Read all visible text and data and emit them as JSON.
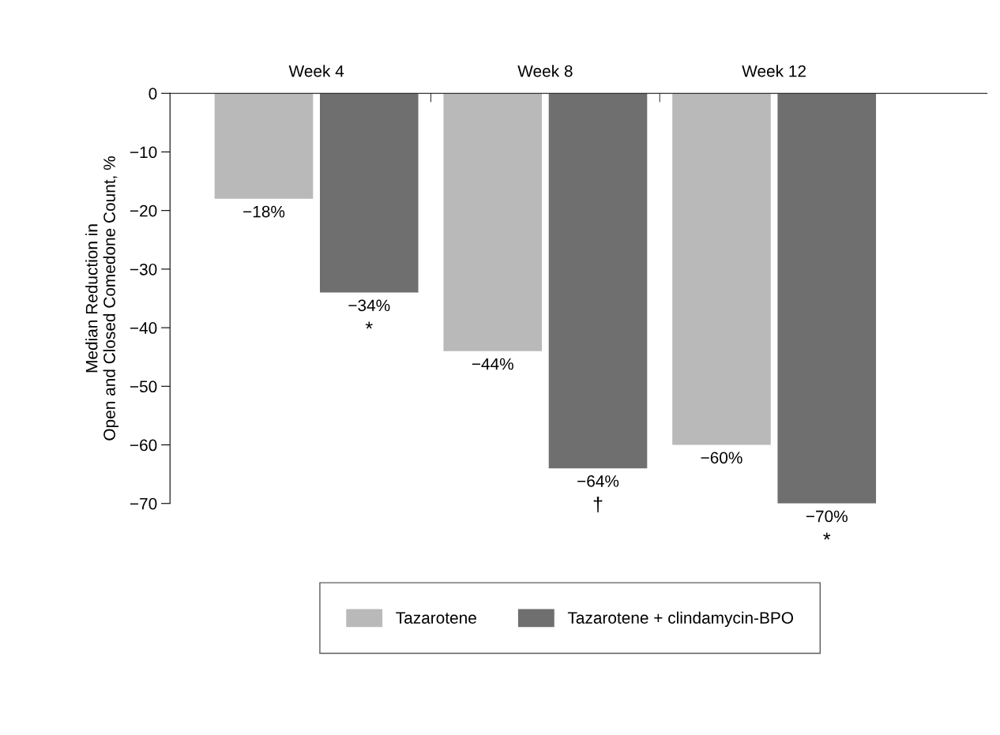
{
  "chart_data": {
    "type": "bar",
    "ylabel": "Median Reduction in\nOpen and Closed Comedone Count, %",
    "categories": [
      "Week 4",
      "Week 8",
      "Week 12"
    ],
    "series": [
      {
        "name": "Tazarotene",
        "color": "#b9b9b9",
        "values": [
          -18,
          -44,
          -60
        ],
        "value_labels": [
          "−18%",
          "−44%",
          "−60%"
        ]
      },
      {
        "name": "Tazarotene + clindamycin-BPO",
        "color": "#6f6f6f",
        "values": [
          -34,
          -64,
          -70
        ],
        "value_labels": [
          "−34%",
          "−64%",
          "−70%"
        ]
      }
    ],
    "ylim": [
      -70,
      0
    ],
    "yticks": [
      {
        "value": 0,
        "label": "0"
      },
      {
        "value": -10,
        "label": "−10"
      },
      {
        "value": -20,
        "label": "−20"
      },
      {
        "value": -30,
        "label": "−30"
      },
      {
        "value": -40,
        "label": "−40"
      },
      {
        "value": -50,
        "label": "−50"
      },
      {
        "value": -60,
        "label": "−60"
      },
      {
        "value": -70,
        "label": "−70"
      }
    ],
    "annotations": [
      {
        "text": "*",
        "x": "Week 4",
        "y": -34
      },
      {
        "text": "†",
        "x": "Week 8",
        "y": -64
      },
      {
        "text": "*",
        "x": "Week 12",
        "y": -70
      }
    ],
    "legend": "bottom",
    "grid": false
  }
}
